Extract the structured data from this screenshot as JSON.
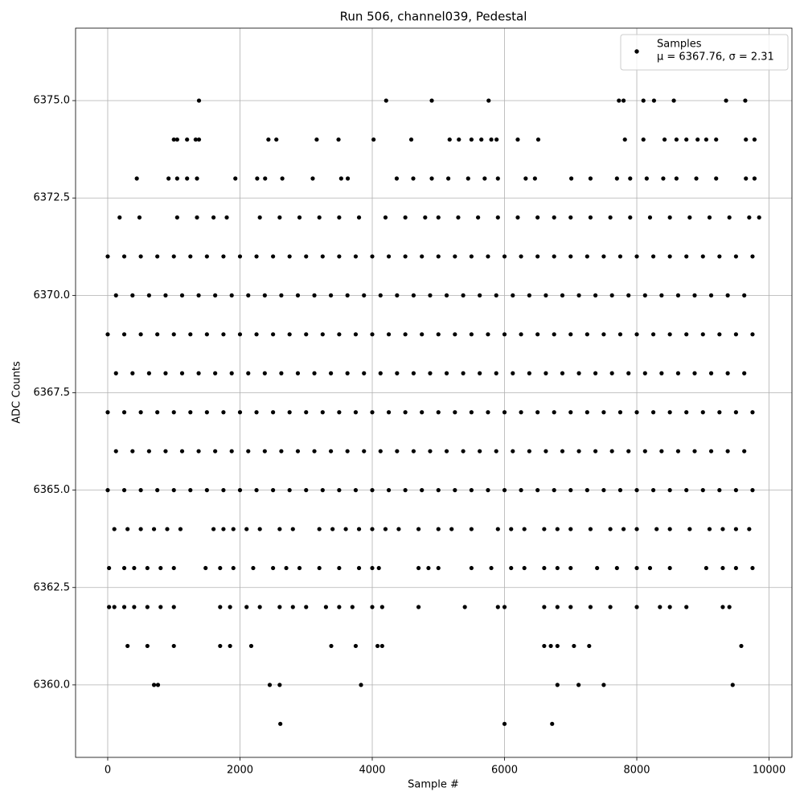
{
  "chart_data": {
    "type": "scatter",
    "title": "Run 506, channel039, Pedestal",
    "xlabel": "Sample #",
    "ylabel": "ADC Counts",
    "xlim": [
      -486,
      10346
    ],
    "ylim": [
      6358.14,
      6376.86
    ],
    "xticks": [
      0,
      2000,
      4000,
      6000,
      8000,
      10000
    ],
    "yticks": [
      {
        "value": 6360,
        "label": "6360.0"
      },
      {
        "value": 6362.5,
        "label": "6362.5"
      },
      {
        "value": 6365,
        "label": "6365.0"
      },
      {
        "value": 6367.5,
        "label": "6367.5"
      },
      {
        "value": 6370,
        "label": "6370.0"
      },
      {
        "value": 6372.5,
        "label": "6372.5"
      },
      {
        "value": 6375,
        "label": "6375.0"
      }
    ],
    "grid": true,
    "legend": "upper right",
    "legend_note": "μ = 6367.76, σ = 2.31",
    "x": [
      1380,
      4210,
      4900,
      5760,
      7730,
      7800,
      8100,
      8260,
      8560,
      9350,
      9640,
      1000,
      1050,
      1200,
      1330,
      1380,
      2430,
      2550,
      3160,
      3490,
      4020,
      4590,
      5170,
      5310,
      5500,
      5650,
      5800,
      5880,
      6200,
      6510,
      7820,
      8100,
      8420,
      8600,
      8750,
      8920,
      9050,
      9200,
      9650,
      9780,
      440,
      920,
      1050,
      1200,
      1350,
      1930,
      2260,
      2380,
      2640,
      3100,
      3530,
      3630,
      4370,
      4620,
      4900,
      5150,
      5450,
      5700,
      5900,
      6320,
      6460,
      7010,
      7300,
      7700,
      7900,
      8150,
      8400,
      8600,
      8900,
      9200,
      9650,
      9780,
      180,
      480,
      1050,
      1350,
      1600,
      1800,
      2300,
      2600,
      2900,
      3200,
      3500,
      3800,
      4200,
      4500,
      4800,
      5000,
      5300,
      5600,
      5900,
      6200,
      6500,
      6750,
      7000,
      7300,
      7600,
      7900,
      8200,
      8500,
      8800,
      9100,
      9400,
      9700,
      9850,
      0,
      250,
      500,
      750,
      1000,
      1250,
      1500,
      1750,
      2000,
      2250,
      2500,
      2750,
      3000,
      3250,
      3500,
      3750,
      4000,
      4250,
      4500,
      4750,
      5000,
      5250,
      5500,
      5750,
      6000,
      6250,
      6500,
      6750,
      7000,
      7250,
      7500,
      7750,
      8000,
      8250,
      8500,
      8750,
      9000,
      9250,
      9500,
      9750,
      125,
      375,
      625,
      875,
      1125,
      1375,
      1625,
      1875,
      2125,
      2375,
      2625,
      2875,
      3125,
      3375,
      3625,
      3875,
      4125,
      4375,
      4625,
      4875,
      5125,
      5375,
      5625,
      5875,
      6125,
      6375,
      6625,
      6875,
      7125,
      7375,
      7625,
      7875,
      8125,
      8375,
      8625,
      8875,
      9125,
      9375,
      9625,
      0,
      250,
      500,
      750,
      1000,
      1250,
      1500,
      1750,
      2000,
      2250,
      2500,
      2750,
      3000,
      3250,
      3500,
      3750,
      4000,
      4250,
      4500,
      4750,
      5000,
      5250,
      5500,
      5750,
      6000,
      6250,
      6500,
      6750,
      7000,
      7250,
      7500,
      7750,
      8000,
      8250,
      8500,
      8750,
      9000,
      9250,
      9500,
      9750,
      125,
      375,
      625,
      875,
      1125,
      1375,
      1625,
      1875,
      2125,
      2375,
      2625,
      2875,
      3125,
      3375,
      3625,
      3875,
      4125,
      4375,
      4625,
      4875,
      5125,
      5375,
      5625,
      5875,
      6125,
      6375,
      6625,
      6875,
      7125,
      7375,
      7625,
      7875,
      8125,
      8375,
      8625,
      8875,
      9125,
      9375,
      9625,
      0,
      250,
      500,
      750,
      1000,
      1250,
      1500,
      1750,
      2000,
      2250,
      2500,
      2750,
      3000,
      3250,
      3500,
      3750,
      4000,
      4250,
      4500,
      4750,
      5000,
      5250,
      5500,
      5750,
      6000,
      6250,
      6500,
      6750,
      7000,
      7250,
      7500,
      7750,
      8000,
      8250,
      8500,
      8750,
      9000,
      9250,
      9500,
      9750,
      125,
      375,
      625,
      875,
      1125,
      1375,
      1625,
      1875,
      2125,
      2375,
      2625,
      2875,
      3125,
      3375,
      3625,
      3875,
      4125,
      4375,
      4625,
      4875,
      5125,
      5375,
      5625,
      5875,
      6125,
      6375,
      6625,
      6875,
      7125,
      7375,
      7625,
      7875,
      8125,
      8375,
      8625,
      8875,
      9125,
      9375,
      9625,
      0,
      250,
      500,
      750,
      1000,
      1250,
      1500,
      1750,
      2000,
      2250,
      2500,
      2750,
      3000,
      3250,
      3500,
      3750,
      4000,
      4250,
      4500,
      4750,
      5000,
      5250,
      5500,
      5750,
      6000,
      6250,
      6500,
      6750,
      7000,
      7250,
      7500,
      7750,
      8000,
      8250,
      8500,
      8750,
      9000,
      9250,
      9500,
      9750,
      100,
      300,
      500,
      700,
      900,
      1100,
      1600,
      1750,
      1900,
      2100,
      2300,
      2600,
      2800,
      3200,
      3400,
      3600,
      3800,
      4000,
      4200,
      4400,
      4700,
      5000,
      5200,
      5500,
      5900,
      6100,
      6300,
      6600,
      6800,
      7000,
      7300,
      7600,
      7800,
      8000,
      8300,
      8500,
      8800,
      9100,
      9300,
      9500,
      9700,
      20,
      250,
      400,
      600,
      800,
      1000,
      1480,
      1700,
      1900,
      2200,
      2500,
      2700,
      2900,
      3200,
      3500,
      3800,
      4000,
      4100,
      4700,
      4850,
      5000,
      5500,
      5800,
      6100,
      6300,
      6600,
      6800,
      7000,
      7400,
      7700,
      8000,
      8200,
      8500,
      9050,
      9300,
      9500,
      9750,
      20,
      100,
      250,
      400,
      600,
      800,
      1000,
      1700,
      1850,
      2100,
      2300,
      2600,
      2800,
      3000,
      3300,
      3500,
      3700,
      4000,
      4150,
      4700,
      5400,
      5900,
      6000,
      6600,
      6800,
      7000,
      7300,
      7600,
      8000,
      8350,
      8500,
      8750,
      9300,
      9400,
      300,
      600,
      1000,
      1700,
      1850,
      2170,
      3380,
      3750,
      4080,
      4150,
      6600,
      6700,
      6800,
      7050,
      7280,
      9580,
      700,
      760,
      2450,
      2600,
      3830,
      6800,
      7120,
      7500,
      9450,
      2610,
      6000,
      6720
    ],
    "series": [
      {
        "name": "Samples",
        "color": "#000000",
        "values": [
          6375,
          6375,
          6375,
          6375,
          6375,
          6375,
          6375,
          6375,
          6375,
          6375,
          6375,
          6374,
          6374,
          6374,
          6374,
          6374,
          6374,
          6374,
          6374,
          6374,
          6374,
          6374,
          6374,
          6374,
          6374,
          6374,
          6374,
          6374,
          6374,
          6374,
          6374,
          6374,
          6374,
          6374,
          6374,
          6374,
          6374,
          6374,
          6374,
          6374,
          6373,
          6373,
          6373,
          6373,
          6373,
          6373,
          6373,
          6373,
          6373,
          6373,
          6373,
          6373,
          6373,
          6373,
          6373,
          6373,
          6373,
          6373,
          6373,
          6373,
          6373,
          6373,
          6373,
          6373,
          6373,
          6373,
          6373,
          6373,
          6373,
          6373,
          6373,
          6373,
          6372,
          6372,
          6372,
          6372,
          6372,
          6372,
          6372,
          6372,
          6372,
          6372,
          6372,
          6372,
          6372,
          6372,
          6372,
          6372,
          6372,
          6372,
          6372,
          6372,
          6372,
          6372,
          6372,
          6372,
          6372,
          6372,
          6372,
          6372,
          6372,
          6372,
          6372,
          6372,
          6372,
          6371,
          6371,
          6371,
          6371,
          6371,
          6371,
          6371,
          6371,
          6371,
          6371,
          6371,
          6371,
          6371,
          6371,
          6371,
          6371,
          6371,
          6371,
          6371,
          6371,
          6371,
          6371,
          6371,
          6371,
          6371,
          6371,
          6371,
          6371,
          6371,
          6371,
          6371,
          6371,
          6371,
          6371,
          6371,
          6371,
          6371,
          6371,
          6371,
          6371,
          6370,
          6370,
          6370,
          6370,
          6370,
          6370,
          6370,
          6370,
          6370,
          6370,
          6370,
          6370,
          6370,
          6370,
          6370,
          6370,
          6370,
          6370,
          6370,
          6370,
          6370,
          6370,
          6370,
          6370,
          6370,
          6370,
          6370,
          6370,
          6370,
          6370,
          6370,
          6370,
          6370,
          6370,
          6370,
          6370,
          6370,
          6370,
          6370,
          6369,
          6369,
          6369,
          6369,
          6369,
          6369,
          6369,
          6369,
          6369,
          6369,
          6369,
          6369,
          6369,
          6369,
          6369,
          6369,
          6369,
          6369,
          6369,
          6369,
          6369,
          6369,
          6369,
          6369,
          6369,
          6369,
          6369,
          6369,
          6369,
          6369,
          6369,
          6369,
          6369,
          6369,
          6369,
          6369,
          6369,
          6369,
          6369,
          6369,
          6368,
          6368,
          6368,
          6368,
          6368,
          6368,
          6368,
          6368,
          6368,
          6368,
          6368,
          6368,
          6368,
          6368,
          6368,
          6368,
          6368,
          6368,
          6368,
          6368,
          6368,
          6368,
          6368,
          6368,
          6368,
          6368,
          6368,
          6368,
          6368,
          6368,
          6368,
          6368,
          6368,
          6368,
          6368,
          6368,
          6368,
          6368,
          6368,
          6367,
          6367,
          6367,
          6367,
          6367,
          6367,
          6367,
          6367,
          6367,
          6367,
          6367,
          6367,
          6367,
          6367,
          6367,
          6367,
          6367,
          6367,
          6367,
          6367,
          6367,
          6367,
          6367,
          6367,
          6367,
          6367,
          6367,
          6367,
          6367,
          6367,
          6367,
          6367,
          6367,
          6367,
          6367,
          6367,
          6367,
          6367,
          6367,
          6367,
          6366,
          6366,
          6366,
          6366,
          6366,
          6366,
          6366,
          6366,
          6366,
          6366,
          6366,
          6366,
          6366,
          6366,
          6366,
          6366,
          6366,
          6366,
          6366,
          6366,
          6366,
          6366,
          6366,
          6366,
          6366,
          6366,
          6366,
          6366,
          6366,
          6366,
          6366,
          6366,
          6366,
          6366,
          6366,
          6366,
          6366,
          6366,
          6366,
          6365,
          6365,
          6365,
          6365,
          6365,
          6365,
          6365,
          6365,
          6365,
          6365,
          6365,
          6365,
          6365,
          6365,
          6365,
          6365,
          6365,
          6365,
          6365,
          6365,
          6365,
          6365,
          6365,
          6365,
          6365,
          6365,
          6365,
          6365,
          6365,
          6365,
          6365,
          6365,
          6365,
          6365,
          6365,
          6365,
          6365,
          6365,
          6365,
          6365,
          6364,
          6364,
          6364,
          6364,
          6364,
          6364,
          6364,
          6364,
          6364,
          6364,
          6364,
          6364,
          6364,
          6364,
          6364,
          6364,
          6364,
          6364,
          6364,
          6364,
          6364,
          6364,
          6364,
          6364,
          6364,
          6364,
          6364,
          6364,
          6364,
          6364,
          6364,
          6364,
          6364,
          6364,
          6364,
          6364,
          6364,
          6364,
          6364,
          6364,
          6364,
          6363,
          6363,
          6363,
          6363,
          6363,
          6363,
          6363,
          6363,
          6363,
          6363,
          6363,
          6363,
          6363,
          6363,
          6363,
          6363,
          6363,
          6363,
          6363,
          6363,
          6363,
          6363,
          6363,
          6363,
          6363,
          6363,
          6363,
          6363,
          6363,
          6363,
          6363,
          6363,
          6363,
          6363,
          6363,
          6363,
          6363,
          6362,
          6362,
          6362,
          6362,
          6362,
          6362,
          6362,
          6362,
          6362,
          6362,
          6362,
          6362,
          6362,
          6362,
          6362,
          6362,
          6362,
          6362,
          6362,
          6362,
          6362,
          6362,
          6362,
          6362,
          6362,
          6362,
          6362,
          6362,
          6362,
          6362,
          6362,
          6362,
          6362,
          6362,
          6361,
          6361,
          6361,
          6361,
          6361,
          6361,
          6361,
          6361,
          6361,
          6361,
          6361,
          6361,
          6361,
          6361,
          6361,
          6361,
          6360,
          6360,
          6360,
          6360,
          6360,
          6360,
          6360,
          6360,
          6360,
          6359,
          6359,
          6359
        ]
      }
    ]
  }
}
